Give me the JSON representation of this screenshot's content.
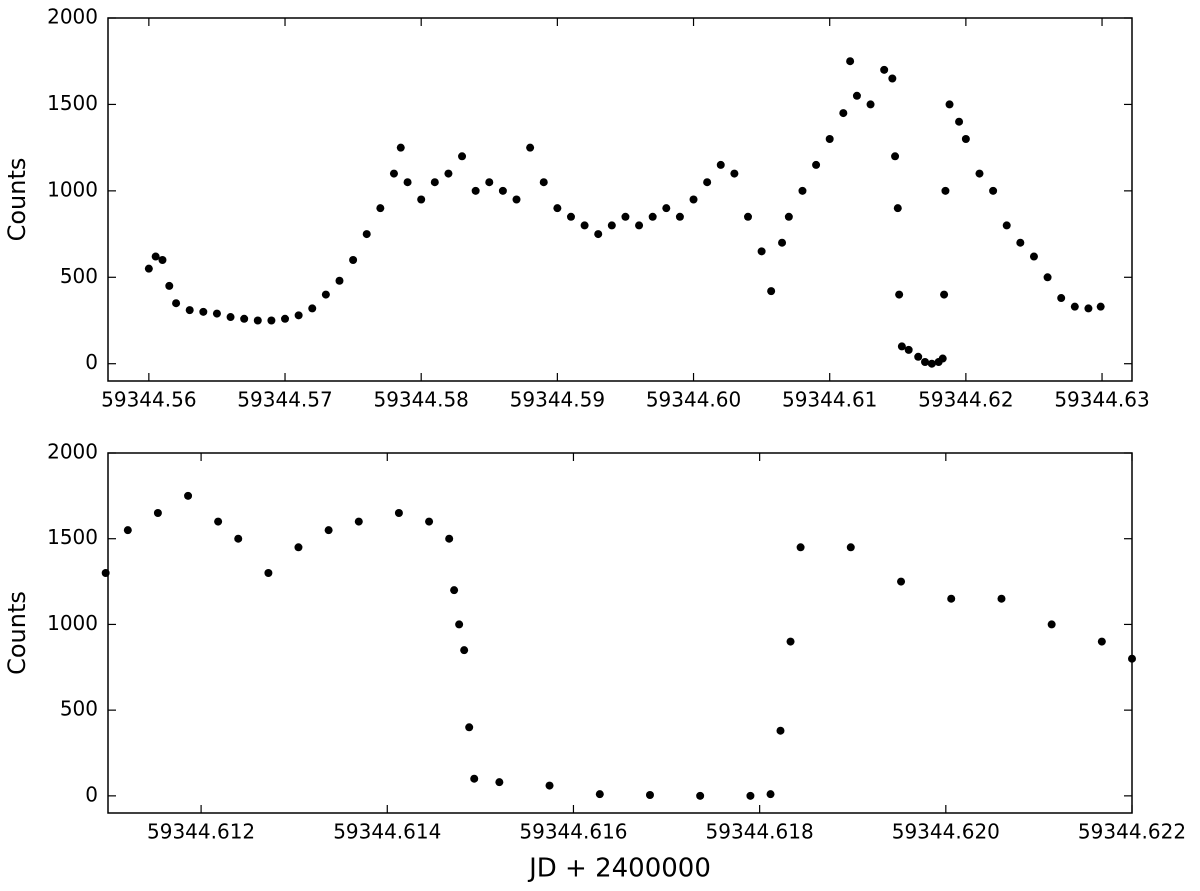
{
  "chart_data": [
    {
      "type": "scatter",
      "ylabel": "Counts",
      "color": "#000000",
      "xlim": [
        59344.557,
        59344.6322
      ],
      "ylim": [
        -100,
        2000
      ],
      "xticks": [
        59344.56,
        59344.57,
        59344.58,
        59344.59,
        {
          "value": 59344.6,
          "label": "59344.60"
        },
        59344.61,
        59344.62,
        59344.63
      ],
      "yticks": [
        0,
        500,
        1000,
        1500,
        2000
      ],
      "x": [
        59344.56,
        59344.5605,
        59344.561,
        59344.5615,
        59344.562,
        59344.563,
        59344.564,
        59344.565,
        59344.566,
        59344.567,
        59344.568,
        59344.569,
        59344.57,
        59344.571,
        59344.572,
        59344.573,
        59344.574,
        59344.575,
        59344.576,
        59344.577,
        59344.578,
        59344.5785,
        59344.579,
        59344.58,
        59344.581,
        59344.582,
        59344.583,
        59344.584,
        59344.585,
        59344.586,
        59344.587,
        59344.588,
        59344.589,
        59344.59,
        59344.591,
        59344.592,
        59344.593,
        59344.594,
        59344.595,
        59344.596,
        59344.597,
        59344.598,
        59344.599,
        59344.6,
        59344.601,
        59344.602,
        59344.603,
        59344.604,
        59344.605,
        59344.6057,
        59344.6065,
        59344.607,
        59344.608,
        59344.609,
        59344.61,
        59344.611,
        59344.6115,
        59344.612,
        59344.613,
        59344.614,
        59344.6146,
        59344.6148,
        59344.615,
        59344.6151,
        59344.6153,
        59344.6158,
        59344.6165,
        59344.617,
        59344.6175,
        59344.618,
        59344.6183,
        59344.6184,
        59344.6185,
        59344.6188,
        59344.6195,
        59344.62,
        59344.621,
        59344.622,
        59344.623,
        59344.624,
        59344.625,
        59344.626,
        59344.627,
        59344.628,
        59344.629,
        59344.6299
      ],
      "values": [
        550,
        620,
        600,
        450,
        350,
        310,
        300,
        290,
        270,
        260,
        250,
        250,
        260,
        280,
        320,
        400,
        480,
        600,
        750,
        900,
        1100,
        1250,
        1050,
        950,
        1050,
        1100,
        1200,
        1000,
        1050,
        1000,
        950,
        1250,
        1050,
        900,
        850,
        800,
        750,
        800,
        850,
        800,
        850,
        900,
        850,
        950,
        1050,
        1150,
        1100,
        850,
        650,
        420,
        700,
        850,
        1000,
        1150,
        1300,
        1450,
        1750,
        1550,
        1500,
        1700,
        1650,
        1200,
        900,
        400,
        100,
        80,
        40,
        10,
        0,
        10,
        30,
        400,
        1000,
        1500,
        1400,
        1300,
        1100,
        1000,
        800,
        700,
        620,
        500,
        380,
        330,
        320,
        330
      ]
    },
    {
      "type": "scatter",
      "xlabel": "JD + 2400000",
      "ylabel": "Counts",
      "color": "#000000",
      "xlim": [
        59344.611,
        59344.622
      ],
      "ylim": [
        -100,
        2000
      ],
      "xticks": [
        59344.612,
        59344.614,
        59344.616,
        59344.618,
        {
          "value": 59344.62,
          "label": "59344.620"
        },
        59344.622
      ],
      "yticks": [
        0,
        500,
        1000,
        1500,
        2000
      ],
      "x": [
        59344.610975,
        59344.611213,
        59344.611536,
        59344.61186,
        59344.612183,
        59344.612399,
        59344.612723,
        59344.613046,
        59344.61337,
        59344.613694,
        59344.614125,
        59344.614449,
        59344.614665,
        59344.614718,
        59344.614772,
        59344.614826,
        59344.61488,
        59344.614934,
        59344.615204,
        59344.615743,
        59344.616283,
        59344.616822,
        59344.617361,
        59344.617901,
        59344.618117,
        59344.618224,
        59344.618332,
        59344.61844,
        59344.618979,
        59344.619519,
        59344.620058,
        59344.620598,
        59344.621137,
        59344.621676,
        59344.622
      ],
      "values": [
        1300,
        1550,
        1650,
        1750,
        1600,
        1500,
        1300,
        1450,
        1550,
        1600,
        1650,
        1600,
        1500,
        1200,
        1000,
        850,
        400,
        100,
        80,
        60,
        10,
        5,
        0,
        0,
        10,
        380,
        900,
        1450,
        1450,
        1250,
        1150,
        1150,
        1000,
        900,
        800
      ]
    }
  ]
}
